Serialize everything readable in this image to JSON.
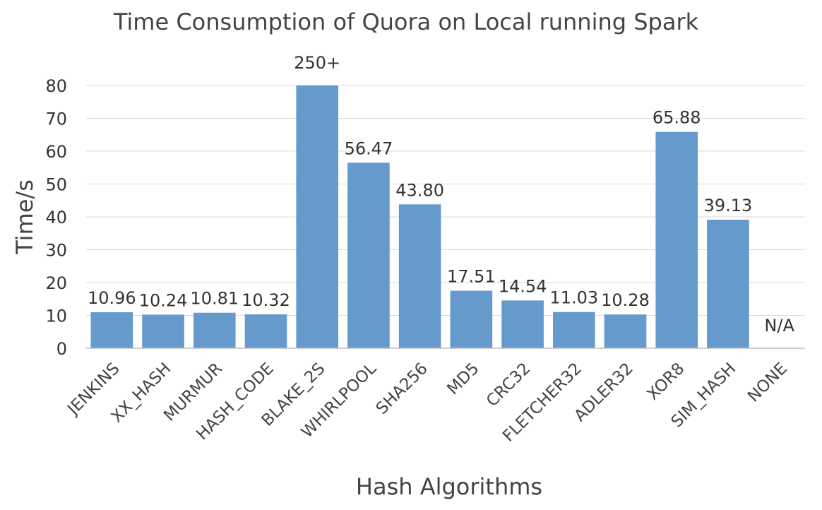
{
  "chart_data": {
    "type": "bar",
    "title": "Time Consumption of Quora on Local running Spark",
    "xlabel": "Hash Algorithms",
    "ylabel": "Time/s",
    "ylim": [
      0,
      80
    ],
    "yticks": [
      0,
      10,
      20,
      30,
      40,
      50,
      60,
      70,
      80
    ],
    "grid": true,
    "bar_color": "#6699cc",
    "categories": [
      "JENKINS",
      "XX_HASH",
      "MURMUR",
      "HASH_CODE",
      "BLAKE_2S",
      "WHIRLPOOL",
      "SHA256",
      "MD5",
      "CRC32",
      "FLETCHER32",
      "ADLER32",
      "XOR8",
      "SIM_HASH",
      "NONE"
    ],
    "values": [
      10.96,
      10.24,
      10.81,
      10.32,
      250,
      56.47,
      43.8,
      17.51,
      14.54,
      11.03,
      10.28,
      65.88,
      39.13,
      null
    ],
    "data_labels": [
      "10.96",
      "10.24",
      "10.81",
      "10.32",
      "250+",
      "56.47",
      "43.80",
      "17.51",
      "14.54",
      "11.03",
      "10.28",
      "65.88",
      "39.13",
      "N/A"
    ]
  }
}
